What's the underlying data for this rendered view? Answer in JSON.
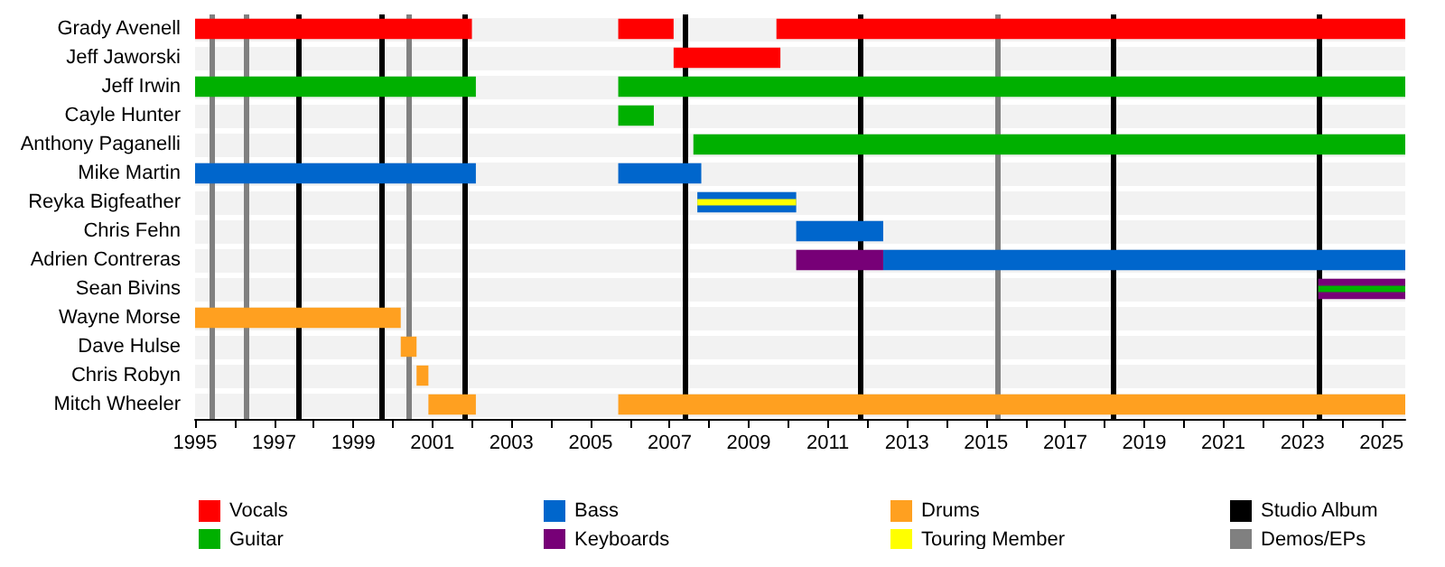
{
  "chart_data": {
    "type": "bar",
    "orientation": "horizontal",
    "legend": "bottom",
    "categories": [
      "Grady Avenell",
      "Jeff Jaworski",
      "Jeff Irwin",
      "Cayle Hunter",
      "Anthony Paganelli",
      "Mike Martin",
      "Reyka Bigfeather",
      "Chris Fehn",
      "Adrien Contreras",
      "Sean Bivins",
      "Wayne Morse",
      "Dave Hulse",
      "Chris Robyn",
      "Mitch Wheeler"
    ],
    "series": [
      {
        "name": "Vocals",
        "color": "#ff0000",
        "base": [
          1995,
          2007.1,
          null,
          null,
          null,
          null,
          null,
          null,
          null,
          null,
          null,
          null,
          null,
          null
        ],
        "values": [
          7.0,
          2.7,
          null,
          null,
          null,
          null,
          null,
          null,
          null,
          null,
          null,
          null,
          null,
          null
        ]
      },
      {
        "color": "#ff0000",
        "base": [
          2005.7,
          null,
          null,
          null,
          null,
          null,
          null,
          null,
          null,
          null,
          null,
          null,
          null,
          null
        ],
        "values": [
          1.4,
          null,
          null,
          null,
          null,
          null,
          null,
          null,
          null,
          null,
          null,
          null,
          null,
          null
        ]
      },
      {
        "color": "#ff0000",
        "base": [
          2009.7,
          null,
          null,
          null,
          null,
          null,
          null,
          null,
          null,
          null,
          null,
          null,
          null,
          null
        ],
        "values": [
          15.9,
          null,
          null,
          null,
          null,
          null,
          null,
          null,
          null,
          null,
          null,
          null,
          null,
          null
        ]
      },
      {
        "name": "Guitar",
        "color": "#00b000",
        "base": [
          null,
          null,
          1995,
          2005.7,
          2007.6,
          null,
          null,
          null,
          null,
          null,
          null,
          null,
          null,
          null
        ],
        "values": [
          null,
          null,
          7.1,
          0.9,
          18.0,
          null,
          null,
          null,
          null,
          null,
          null,
          null,
          null,
          null
        ]
      },
      {
        "color": "#00b000",
        "base": [
          null,
          null,
          2005.7,
          null,
          null,
          null,
          null,
          null,
          null,
          null,
          null,
          null,
          null,
          null
        ],
        "values": [
          null,
          null,
          19.9,
          null,
          null,
          null,
          null,
          null,
          null,
          null,
          null,
          null,
          null,
          null
        ]
      },
      {
        "name": "Bass",
        "color": "#0066cc",
        "base": [
          null,
          null,
          null,
          null,
          null,
          1995,
          2007.7,
          2010.2,
          2012.4,
          null,
          null,
          null,
          null,
          null
        ],
        "values": [
          null,
          null,
          null,
          null,
          null,
          7.1,
          2.5,
          2.2,
          13.2,
          null,
          null,
          null,
          null,
          null
        ]
      },
      {
        "color": "#0066cc",
        "base": [
          null,
          null,
          null,
          null,
          null,
          2005.7,
          null,
          null,
          null,
          null,
          null,
          null,
          null,
          null
        ],
        "values": [
          null,
          null,
          null,
          null,
          null,
          2.1,
          null,
          null,
          null,
          null,
          null,
          null,
          null,
          null
        ]
      },
      {
        "name": "Keyboards",
        "color": "#770077",
        "base": [
          null,
          null,
          null,
          null,
          null,
          null,
          null,
          null,
          2010.2,
          2023.4,
          null,
          null,
          null,
          null
        ],
        "values": [
          null,
          null,
          null,
          null,
          null,
          null,
          null,
          null,
          2.2,
          2.2,
          null,
          null,
          null,
          null
        ]
      },
      {
        "name": "Drums",
        "color": "#ffa020",
        "base": [
          null,
          null,
          null,
          null,
          null,
          null,
          null,
          null,
          null,
          null,
          1995,
          2000.2,
          2000.6,
          2000.9
        ],
        "values": [
          null,
          null,
          null,
          null,
          null,
          null,
          null,
          null,
          null,
          null,
          5.2,
          0.4,
          0.3,
          1.2
        ]
      },
      {
        "color": "#ffa020",
        "base": [
          null,
          null,
          null,
          null,
          null,
          null,
          null,
          null,
          null,
          null,
          null,
          null,
          null,
          2005.7
        ],
        "values": [
          null,
          null,
          null,
          null,
          null,
          null,
          null,
          null,
          null,
          null,
          null,
          null,
          null,
          19.9
        ]
      },
      {
        "name": "Touring Member",
        "color": "#ffff00",
        "base": [
          null,
          null,
          null,
          null,
          null,
          null,
          2007.7,
          null,
          null,
          null,
          null,
          null,
          null,
          null
        ],
        "values": [
          null,
          null,
          null,
          null,
          null,
          null,
          2.5,
          null,
          null,
          null,
          null,
          null,
          null,
          null
        ]
      },
      {
        "color": "#00b000",
        "base": [
          null,
          null,
          null,
          null,
          null,
          null,
          null,
          null,
          null,
          2023.4,
          null,
          null,
          null,
          null
        ],
        "values": [
          null,
          null,
          null,
          null,
          null,
          null,
          null,
          null,
          null,
          2.2,
          null,
          null,
          null,
          null
        ]
      }
    ],
    "ref_lines": [
      {
        "axis": "x",
        "value": 1997.6,
        "label": "Studio Album",
        "color": "#000000"
      },
      {
        "axis": "x",
        "value": 1999.7,
        "color": "#000000"
      },
      {
        "axis": "x",
        "value": 2001.8,
        "color": "#000000"
      },
      {
        "axis": "x",
        "value": 2007.4,
        "color": "#000000"
      },
      {
        "axis": "x",
        "value": 2011.8,
        "color": "#000000"
      },
      {
        "axis": "x",
        "value": 2018.2,
        "color": "#000000"
      },
      {
        "axis": "x",
        "value": 2023.4,
        "color": "#000000"
      },
      {
        "axis": "x",
        "value": 1995.4,
        "label": "Demos/EPs",
        "color": "#808080"
      },
      {
        "axis": "x",
        "value": 1996.3,
        "color": "#808080"
      },
      {
        "axis": "x",
        "value": 2000.4,
        "color": "#808080"
      },
      {
        "axis": "x",
        "value": 2015.3,
        "color": "#808080"
      }
    ],
    "xlim": [
      1995,
      2025.6
    ],
    "xticks": [
      1995,
      {
        "value": 1996,
        "label": null
      },
      1997,
      {
        "value": 1998,
        "label": null
      },
      1999,
      {
        "value": 2000,
        "label": null
      },
      2001,
      {
        "value": 2002,
        "label": null
      },
      2003,
      {
        "value": 2004,
        "label": null
      },
      2005,
      {
        "value": 2006,
        "label": null
      },
      2007,
      {
        "value": 2008,
        "label": null
      },
      2009,
      {
        "value": 2010,
        "label": null
      },
      2011,
      {
        "value": 2012,
        "label": null
      },
      2013,
      {
        "value": 2014,
        "label": null
      },
      2015,
      {
        "value": 2016,
        "label": null
      },
      2017,
      {
        "value": 2018,
        "label": null
      },
      2019,
      {
        "value": 2020,
        "label": null
      },
      2021,
      {
        "value": 2022,
        "label": null
      },
      2023,
      {
        "value": 2024,
        "label": null
      },
      2025
    ]
  }
}
